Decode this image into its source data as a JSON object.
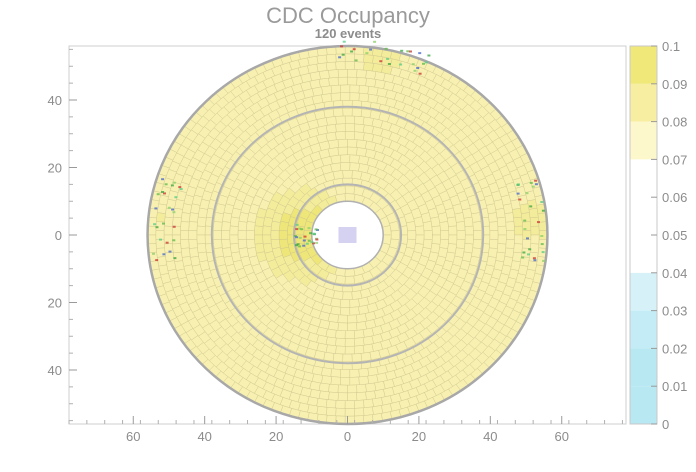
{
  "chart_data": {
    "type": "heatmap",
    "title": "CDC Occupancy",
    "subtitle": "120 events",
    "xlim": [
      -78,
      78
    ],
    "ylim": [
      -56,
      56
    ],
    "x_ticks": [
      -60,
      -40,
      -20,
      0,
      20,
      40,
      60
    ],
    "x_tick_labels": [
      "60",
      "40",
      "20",
      "0",
      "20",
      "40",
      "60"
    ],
    "y_ticks": [
      40,
      20,
      0,
      -20,
      -40
    ],
    "y_tick_labels": [
      "40",
      "20",
      "0",
      "20",
      "40"
    ],
    "geometry": {
      "inner_radius": 10,
      "outer_radius": 56,
      "super_layer_boundaries": [
        15,
        38
      ]
    },
    "hot_regions": [
      {
        "angle_deg": 180,
        "radius": 12,
        "level": 0.1
      },
      {
        "angle_deg": 5,
        "radius": 52,
        "level": 0.09
      },
      {
        "angle_deg": 80,
        "radius": 55,
        "level": 0.09
      },
      {
        "angle_deg": 175,
        "radius": 52,
        "level": 0.085
      }
    ],
    "baseline_level": 0.075,
    "colorbar": {
      "min": 0,
      "max": 0.1,
      "ticks": [
        0,
        0.01,
        0.02,
        0.03,
        0.04,
        0.05,
        0.06,
        0.07,
        0.08,
        0.09,
        0.1
      ],
      "tick_labels": [
        "0",
        "0.01",
        "0.02",
        "0.03",
        "0.04",
        "0.05",
        "0.06",
        "0.07",
        "0.08",
        "0.09",
        "0.1"
      ],
      "colors": [
        "#d8d0ee",
        "#b8e8f2",
        "#b8e8f2",
        "#c4ecf6",
        "#d6f2f8",
        "#ffffff",
        "#ffffff",
        "#ffffff",
        "#fdf7cc",
        "#f7eea2",
        "#f0e878"
      ]
    }
  }
}
